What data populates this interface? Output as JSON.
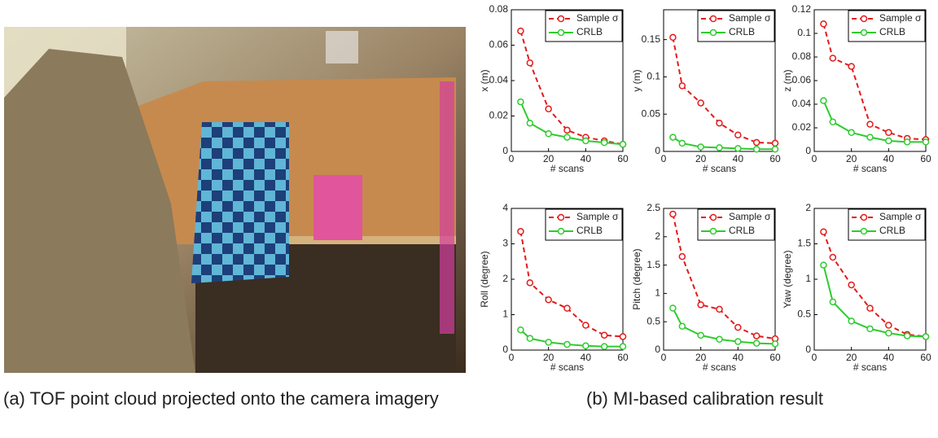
{
  "captions": [
    "(a) TOF point cloud projected onto the camera imagery",
    "(b) MI-based calibration result"
  ],
  "chart_data": [
    {
      "type": "line",
      "ylabel": "x (m)",
      "xlabel": "# scans",
      "x": [
        5,
        10,
        20,
        30,
        40,
        50,
        60
      ],
      "xlim": [
        0,
        60
      ],
      "xticks": [
        0,
        20,
        40,
        60
      ],
      "ylim": [
        0,
        0.08
      ],
      "yticks": [
        0,
        0.02,
        0.04,
        0.06,
        0.08
      ],
      "series": [
        {
          "name": "Sample σ",
          "color": "#e41a1a",
          "values": [
            0.068,
            0.05,
            0.024,
            0.012,
            0.008,
            0.006,
            0.004
          ]
        },
        {
          "name": "CRLB",
          "color": "#2ecc2e",
          "values": [
            0.028,
            0.016,
            0.01,
            0.008,
            0.006,
            0.005,
            0.004
          ]
        }
      ]
    },
    {
      "type": "line",
      "ylabel": "y (m)",
      "xlabel": "# scans",
      "x": [
        5,
        10,
        20,
        30,
        40,
        50,
        60
      ],
      "xlim": [
        0,
        60
      ],
      "xticks": [
        0,
        20,
        40,
        60
      ],
      "ylim": [
        0,
        0.19
      ],
      "yticks": [
        0,
        0.05,
        0.1,
        0.15
      ],
      "series": [
        {
          "name": "Sample σ",
          "color": "#e41a1a",
          "values": [
            0.153,
            0.088,
            0.065,
            0.038,
            0.022,
            0.012,
            0.011
          ]
        },
        {
          "name": "CRLB",
          "color": "#2ecc2e",
          "values": [
            0.019,
            0.011,
            0.006,
            0.005,
            0.004,
            0.003,
            0.003
          ]
        }
      ]
    },
    {
      "type": "line",
      "ylabel": "z (m)",
      "xlabel": "# scans",
      "x": [
        5,
        10,
        20,
        30,
        40,
        50,
        60
      ],
      "xlim": [
        0,
        60
      ],
      "xticks": [
        0,
        20,
        40,
        60
      ],
      "ylim": [
        0,
        0.12
      ],
      "yticks": [
        0,
        0.02,
        0.04,
        0.06,
        0.08,
        0.1,
        0.12
      ],
      "series": [
        {
          "name": "Sample σ",
          "color": "#e41a1a",
          "values": [
            0.108,
            0.079,
            0.072,
            0.023,
            0.016,
            0.011,
            0.01
          ]
        },
        {
          "name": "CRLB",
          "color": "#2ecc2e",
          "values": [
            0.043,
            0.025,
            0.016,
            0.012,
            0.009,
            0.008,
            0.008
          ]
        }
      ]
    },
    {
      "type": "line",
      "ylabel": "Roll (degree)",
      "xlabel": "# scans",
      "x": [
        5,
        10,
        20,
        30,
        40,
        50,
        60
      ],
      "xlim": [
        0,
        60
      ],
      "xticks": [
        0,
        20,
        40,
        60
      ],
      "ylim": [
        0,
        4
      ],
      "yticks": [
        0,
        1,
        2,
        3,
        4
      ],
      "series": [
        {
          "name": "Sample σ",
          "color": "#e41a1a",
          "values": [
            3.35,
            1.9,
            1.42,
            1.18,
            0.7,
            0.42,
            0.38
          ]
        },
        {
          "name": "CRLB",
          "color": "#2ecc2e",
          "values": [
            0.57,
            0.33,
            0.22,
            0.16,
            0.12,
            0.1,
            0.1
          ]
        }
      ]
    },
    {
      "type": "line",
      "ylabel": "Pitch (degree)",
      "xlabel": "# scans",
      "x": [
        5,
        10,
        20,
        30,
        40,
        50,
        60
      ],
      "xlim": [
        0,
        60
      ],
      "xticks": [
        0,
        20,
        40,
        60
      ],
      "ylim": [
        0,
        2.5
      ],
      "yticks": [
        0,
        0.5,
        1,
        1.5,
        2,
        2.5
      ],
      "series": [
        {
          "name": "Sample σ",
          "color": "#e41a1a",
          "values": [
            2.4,
            1.65,
            0.8,
            0.72,
            0.4,
            0.25,
            0.2
          ]
        },
        {
          "name": "CRLB",
          "color": "#2ecc2e",
          "values": [
            0.74,
            0.42,
            0.26,
            0.19,
            0.15,
            0.12,
            0.11
          ]
        }
      ]
    },
    {
      "type": "line",
      "ylabel": "Yaw (degree)",
      "xlabel": "# scans",
      "x": [
        5,
        10,
        20,
        30,
        40,
        50,
        60
      ],
      "xlim": [
        0,
        60
      ],
      "xticks": [
        0,
        20,
        40,
        60
      ],
      "ylim": [
        0,
        2
      ],
      "yticks": [
        0,
        0.5,
        1,
        1.5,
        2
      ],
      "series": [
        {
          "name": "Sample σ",
          "color": "#e41a1a",
          "values": [
            1.67,
            1.31,
            0.92,
            0.59,
            0.35,
            0.22,
            0.19
          ]
        },
        {
          "name": "CRLB",
          "color": "#2ecc2e",
          "values": [
            1.2,
            0.68,
            0.41,
            0.3,
            0.24,
            0.2,
            0.19
          ]
        }
      ]
    }
  ]
}
